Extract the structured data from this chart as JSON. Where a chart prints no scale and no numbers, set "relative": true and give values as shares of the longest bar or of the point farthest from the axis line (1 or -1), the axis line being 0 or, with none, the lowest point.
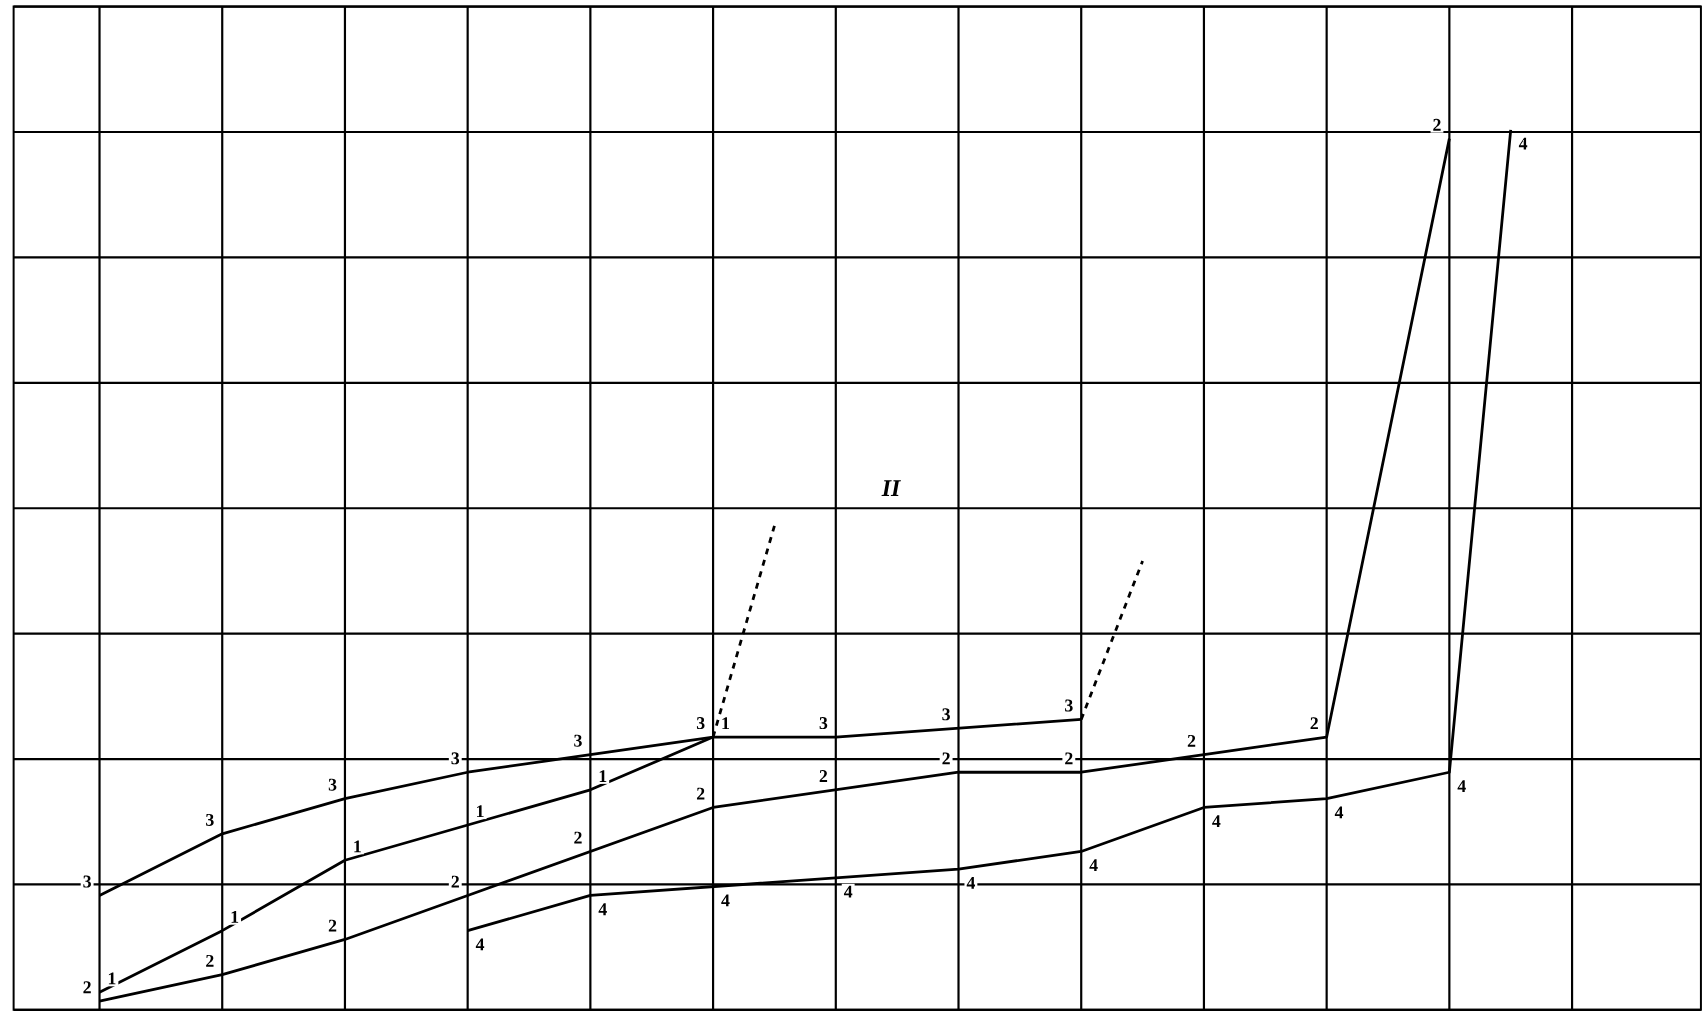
{
  "chart_data": {
    "type": "line",
    "relative": true,
    "grid": true,
    "legend": false,
    "marker": "none",
    "categories": [
      null,
      null,
      null,
      null,
      null,
      null,
      null,
      null,
      null,
      null,
      null,
      null,
      null,
      null,
      null,
      null,
      null,
      null,
      null,
      null,
      null,
      null,
      null,
      null,
      null
    ],
    "annotations": [
      "II"
    ],
    "series": [
      {
        "name": "3",
        "color": "#000000",
        "values": [
          0.13,
          null,
          0.2,
          null,
          0.24,
          null,
          0.27,
          null,
          0.29,
          null,
          0.31,
          null,
          0.31,
          null,
          0.32,
          null,
          0.33,
          null,
          null,
          null,
          null,
          null,
          null,
          null,
          null
        ]
      },
      {
        "name": "1",
        "color": "#000000",
        "values": [
          0.02,
          null,
          0.09,
          null,
          0.17,
          null,
          0.21,
          null,
          0.25,
          null,
          0.31,
          null,
          null,
          null,
          null,
          null,
          null,
          null,
          null,
          null,
          null,
          null,
          null,
          null,
          null
        ]
      },
      {
        "name": "2",
        "color": "#000000",
        "values": [
          0.01,
          null,
          0.04,
          null,
          0.08,
          null,
          0.13,
          null,
          0.18,
          null,
          0.23,
          null,
          0.25,
          null,
          0.27,
          null,
          0.27,
          null,
          0.29,
          null,
          0.31,
          null,
          0.99,
          null,
          null
        ]
      },
      {
        "name": "4",
        "color": "#000000",
        "values": [
          null,
          null,
          null,
          null,
          null,
          null,
          0.09,
          null,
          0.13,
          null,
          0.14,
          null,
          0.15,
          null,
          0.16,
          null,
          0.18,
          null,
          0.23,
          null,
          0.24,
          null,
          0.27,
          1.0,
          null
        ]
      },
      {
        "color": "#000000",
        "line_style": "dashed",
        "values": [
          null,
          null,
          null,
          null,
          null,
          null,
          null,
          null,
          null,
          null,
          0.31,
          0.55,
          null,
          null,
          null,
          null,
          null,
          null,
          null,
          null,
          null,
          null,
          null,
          null,
          null
        ]
      },
      {
        "color": "#000000",
        "line_style": "dashed",
        "values": [
          null,
          null,
          null,
          null,
          null,
          null,
          null,
          null,
          null,
          null,
          null,
          null,
          null,
          null,
          null,
          null,
          0.33,
          0.51,
          null,
          null,
          null,
          null,
          null,
          null,
          null
        ]
      }
    ]
  }
}
